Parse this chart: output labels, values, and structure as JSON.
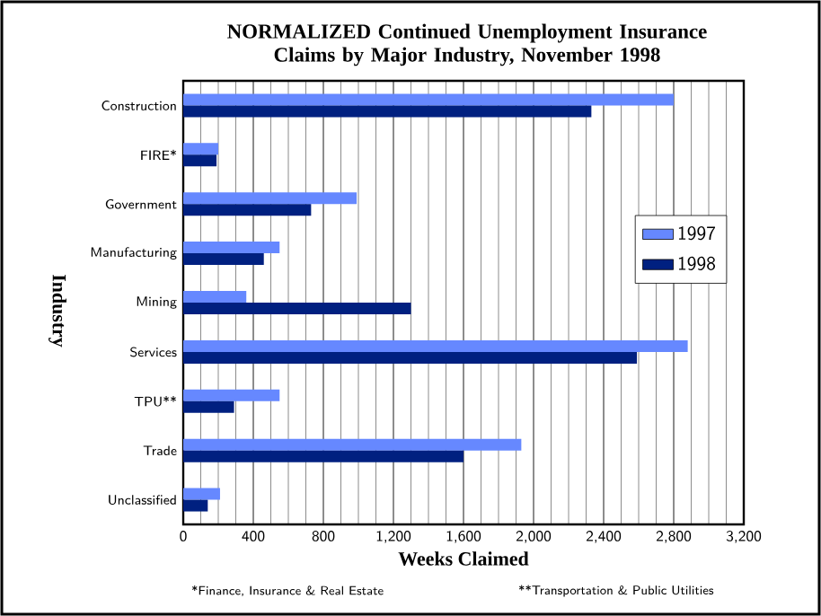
{
  "chart_data": {
    "type": "bar",
    "orientation": "horizontal",
    "title": "NORMALIZED Continued Unemployment Insurance Claims by Major Industry, November 1998",
    "xlabel": "Weeks Claimed",
    "ylabel": "Industry",
    "categories": [
      "Construction",
      "FIRE*",
      "Government",
      "Manufacturing",
      "Mining",
      "Services",
      "TPU**",
      "Trade",
      "Unclassified"
    ],
    "series": [
      {
        "name": "1997",
        "color": "#6688ff",
        "values": [
          2800,
          200,
          990,
          550,
          360,
          2880,
          550,
          1930,
          210
        ]
      },
      {
        "name": "1998",
        "color": "#002080",
        "values": [
          2330,
          190,
          730,
          460,
          1300,
          2590,
          290,
          1600,
          140
        ]
      }
    ],
    "xlim": [
      0,
      3200
    ],
    "xticks": [
      0,
      400,
      800,
      {
        "value": 1200,
        "label": "1,200"
      },
      {
        "value": 1600,
        "label": "1,600"
      },
      {
        "value": 2000,
        "label": "2,000"
      },
      {
        "value": 2400,
        "label": "2,400"
      },
      {
        "value": 2800,
        "label": "2,800"
      },
      {
        "value": 3200,
        "label": "3,200"
      }
    ],
    "grid": "x",
    "legend": "right",
    "annotations": [
      "*Finance, Insurance & Real Estate",
      "**Transportation & Public Utilities"
    ]
  }
}
